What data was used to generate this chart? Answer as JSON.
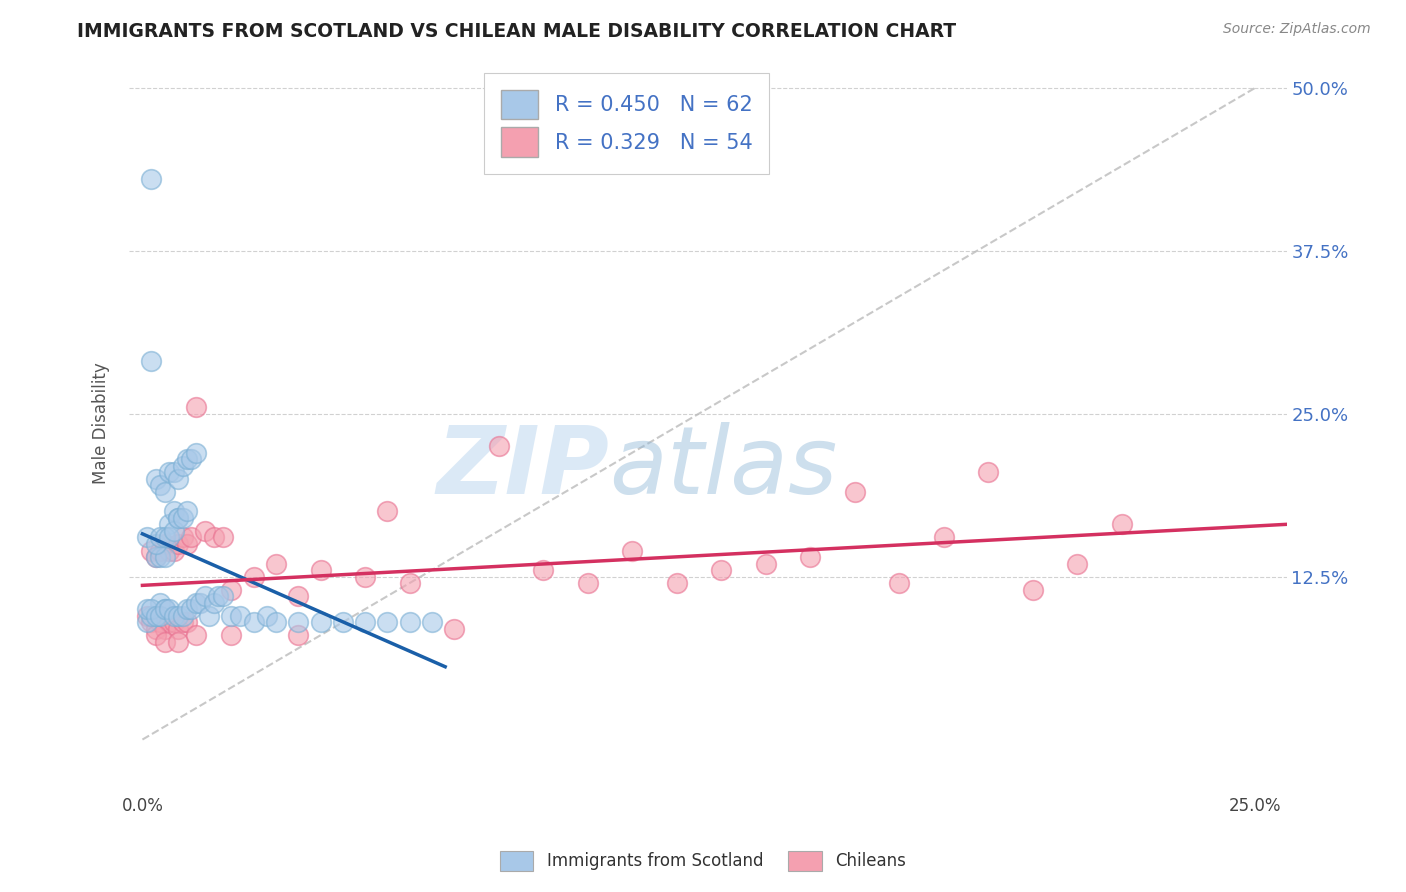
{
  "title": "IMMIGRANTS FROM SCOTLAND VS CHILEAN MALE DISABILITY CORRELATION CHART",
  "source_text": "Source: ZipAtlas.com",
  "ylabel": "Male Disability",
  "blue_R": 0.45,
  "blue_N": 62,
  "pink_R": 0.329,
  "pink_N": 54,
  "blue_color": "#a8c8e8",
  "pink_color": "#f4a0b0",
  "blue_edge_color": "#7aafd4",
  "pink_edge_color": "#e87090",
  "blue_line_color": "#1a5fa8",
  "pink_line_color": "#d43060",
  "legend_label_blue": "Immigrants from Scotland",
  "legend_label_pink": "Chileans",
  "watermark_zip": "ZIP",
  "watermark_atlas": "atlas",
  "background_color": "#ffffff",
  "grid_color": "#cccccc",
  "xlim": [
    -0.003,
    0.257
  ],
  "ylim": [
    -0.04,
    0.525
  ],
  "blue_scatter_x": [
    0.001,
    0.002,
    0.003,
    0.004,
    0.005,
    0.001,
    0.002,
    0.003,
    0.004,
    0.005,
    0.006,
    0.007,
    0.008,
    0.002,
    0.003,
    0.004,
    0.005,
    0.006,
    0.007,
    0.008,
    0.009,
    0.01,
    0.003,
    0.004,
    0.005,
    0.006,
    0.007,
    0.008,
    0.009,
    0.01,
    0.011,
    0.012,
    0.001,
    0.002,
    0.003,
    0.004,
    0.005,
    0.006,
    0.007,
    0.008,
    0.009,
    0.01,
    0.011,
    0.012,
    0.013,
    0.014,
    0.015,
    0.016,
    0.017,
    0.018,
    0.02,
    0.022,
    0.025,
    0.028,
    0.03,
    0.035,
    0.04,
    0.045,
    0.05,
    0.055,
    0.06,
    0.065
  ],
  "blue_scatter_y": [
    0.155,
    0.43,
    0.095,
    0.105,
    0.1,
    0.09,
    0.095,
    0.14,
    0.14,
    0.14,
    0.165,
    0.175,
    0.17,
    0.29,
    0.15,
    0.155,
    0.155,
    0.155,
    0.16,
    0.17,
    0.17,
    0.175,
    0.2,
    0.195,
    0.19,
    0.205,
    0.205,
    0.2,
    0.21,
    0.215,
    0.215,
    0.22,
    0.1,
    0.1,
    0.095,
    0.095,
    0.1,
    0.1,
    0.095,
    0.095,
    0.095,
    0.1,
    0.1,
    0.105,
    0.105,
    0.11,
    0.095,
    0.105,
    0.11,
    0.11,
    0.095,
    0.095,
    0.09,
    0.095,
    0.09,
    0.09,
    0.09,
    0.09,
    0.09,
    0.09,
    0.09,
    0.09
  ],
  "pink_scatter_x": [
    0.001,
    0.002,
    0.003,
    0.004,
    0.005,
    0.006,
    0.007,
    0.008,
    0.009,
    0.01,
    0.002,
    0.003,
    0.004,
    0.005,
    0.006,
    0.007,
    0.008,
    0.009,
    0.01,
    0.011,
    0.012,
    0.014,
    0.016,
    0.018,
    0.02,
    0.025,
    0.03,
    0.035,
    0.04,
    0.05,
    0.06,
    0.07,
    0.08,
    0.09,
    0.1,
    0.11,
    0.12,
    0.13,
    0.14,
    0.15,
    0.16,
    0.17,
    0.18,
    0.19,
    0.2,
    0.21,
    0.22,
    0.003,
    0.005,
    0.008,
    0.012,
    0.02,
    0.035,
    0.055
  ],
  "pink_scatter_y": [
    0.095,
    0.09,
    0.085,
    0.09,
    0.085,
    0.09,
    0.09,
    0.085,
    0.09,
    0.09,
    0.145,
    0.14,
    0.145,
    0.15,
    0.145,
    0.145,
    0.15,
    0.155,
    0.15,
    0.155,
    0.255,
    0.16,
    0.155,
    0.155,
    0.115,
    0.125,
    0.135,
    0.11,
    0.13,
    0.125,
    0.12,
    0.085,
    0.225,
    0.13,
    0.12,
    0.145,
    0.12,
    0.13,
    0.135,
    0.14,
    0.19,
    0.12,
    0.155,
    0.205,
    0.115,
    0.135,
    0.165,
    0.08,
    0.075,
    0.075,
    0.08,
    0.08,
    0.08,
    0.175
  ]
}
